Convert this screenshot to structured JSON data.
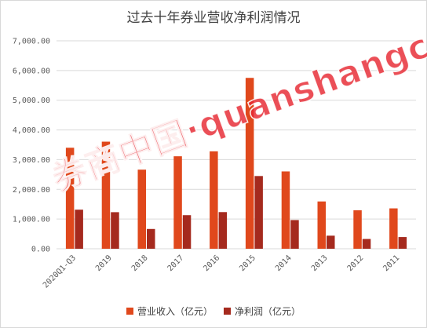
{
  "chart_data": {
    "type": "bar",
    "title": "过去十年券业营收净利润情况",
    "categories": [
      "2020Q1-Q3",
      "2019",
      "2018",
      "2017",
      "2016",
      "2015",
      "2014",
      "2013",
      "2012",
      "2011"
    ],
    "series": [
      {
        "name": "营业收入（亿元）",
        "color": "#e0481c",
        "values": [
          3400,
          3605,
          2663,
          3113,
          3280,
          5752,
          2603,
          1592,
          1295,
          1359
        ]
      },
      {
        "name": "净利润（亿元）",
        "color": "#a52a1e",
        "values": [
          1315,
          1231,
          666,
          1130,
          1234,
          2448,
          966,
          440,
          329,
          394
        ]
      }
    ],
    "ylim": [
      0,
      7000
    ],
    "yticks": [
      "0.00",
      "1,000.00",
      "2,000.00",
      "3,000.00",
      "4,000.00",
      "5,000.00",
      "6,000.00",
      "7,000.00"
    ],
    "grid": true,
    "legend_position": "bottom"
  },
  "watermark": {
    "text": "券商中国·quanshangcn",
    "color": "#e62832"
  }
}
